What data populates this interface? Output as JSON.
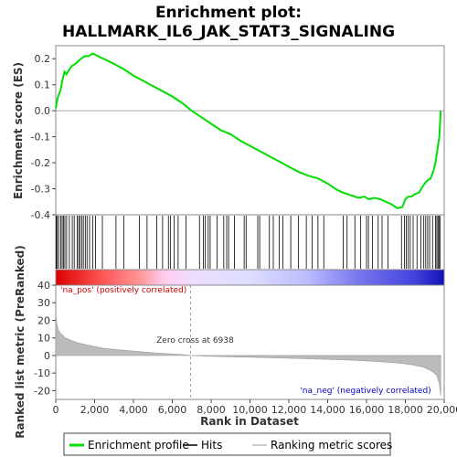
{
  "chart_data": {
    "type": "line",
    "title_line1": "Enrichment plot:",
    "title_line2": "HALLMARK_IL6_JAK_STAT3_SIGNALING",
    "es_panel": {
      "ylabel": "Enrichment score (ES)",
      "ylim": [
        -0.4,
        0.25
      ],
      "yticks": [
        -0.4,
        -0.3,
        -0.2,
        -0.1,
        0.0,
        0.1,
        0.2
      ],
      "ytick_labels": [
        "-0.4",
        "-0.3",
        "-0.2",
        "-0.1",
        "0.0",
        "0.1",
        "0.2"
      ],
      "series": [
        {
          "name": "Enrichment profile",
          "color": "#00dd00",
          "x": [
            0,
            100,
            250,
            350,
            450,
            550,
            800,
            1000,
            1150,
            1300,
            1500,
            1700,
            1900,
            2050,
            2300,
            2600,
            3000,
            3500,
            4000,
            4500,
            5000,
            5500,
            6000,
            6500,
            7000,
            7500,
            8000,
            8500,
            9000,
            9500,
            10000,
            10500,
            11000,
            11500,
            12000,
            12500,
            13000,
            13500,
            14000,
            14500,
            14800,
            15200,
            15600,
            15900,
            16100,
            16400,
            16700,
            17000,
            17300,
            17600,
            17850,
            18000,
            18150,
            18300,
            18500,
            18700,
            18900,
            19100,
            19300,
            19450,
            19550,
            19650,
            19750,
            19820
          ],
          "y": [
            0.01,
            0.05,
            0.08,
            0.12,
            0.15,
            0.14,
            0.17,
            0.18,
            0.19,
            0.2,
            0.21,
            0.21,
            0.22,
            0.215,
            0.205,
            0.195,
            0.18,
            0.16,
            0.135,
            0.115,
            0.095,
            0.075,
            0.055,
            0.03,
            0.0,
            -0.025,
            -0.05,
            -0.075,
            -0.09,
            -0.115,
            -0.135,
            -0.155,
            -0.175,
            -0.195,
            -0.215,
            -0.235,
            -0.25,
            -0.26,
            -0.28,
            -0.305,
            -0.315,
            -0.325,
            -0.335,
            -0.33,
            -0.34,
            -0.335,
            -0.34,
            -0.35,
            -0.36,
            -0.375,
            -0.37,
            -0.34,
            -0.33,
            -0.33,
            -0.32,
            -0.315,
            -0.29,
            -0.27,
            -0.26,
            -0.23,
            -0.2,
            -0.15,
            -0.1,
            0.0
          ]
        }
      ]
    },
    "hits_panel": {
      "hit_positions": [
        30,
        80,
        150,
        260,
        330,
        400,
        470,
        560,
        700,
        850,
        950,
        1100,
        1180,
        1250,
        1340,
        1420,
        1520,
        1610,
        1740,
        1900,
        2050,
        2400,
        3100,
        3500,
        4300,
        4700,
        5200,
        5500,
        5800,
        5900,
        6100,
        6300,
        6700,
        7400,
        7600,
        7700,
        7850,
        7950,
        8300,
        8650,
        8800,
        8900,
        9200,
        9700,
        9800,
        10400,
        10500,
        11000,
        11200,
        11500,
        11700,
        12100,
        12500,
        12900,
        13200,
        13500,
        13800,
        14800,
        15000,
        15400,
        15700,
        16000,
        16100,
        16300,
        16600,
        16800,
        17100,
        17800,
        17950,
        18050,
        18150,
        18250,
        18400,
        18600,
        18800,
        18950,
        19050,
        19150,
        19250,
        19400,
        19550,
        19620,
        19680,
        19730,
        19780
      ]
    },
    "rank_panel": {
      "ylabel": "Ranked list metric (PreRanked)",
      "xlabel": "Rank in Dataset",
      "ylim": [
        -25,
        40
      ],
      "yticks": [
        -20,
        -10,
        0,
        10,
        20,
        30,
        40
      ],
      "ytick_labels": [
        "-20",
        "-10",
        "0",
        "10",
        "20",
        "30",
        "40"
      ],
      "x": [
        0,
        50,
        150,
        300,
        500,
        800,
        1200,
        1800,
        2500,
        3500,
        4500,
        5500,
        6500,
        6938,
        8000,
        10000,
        12000,
        14000,
        15500,
        16500,
        17500,
        18300,
        18900,
        19300,
        19600,
        19750,
        19820
      ],
      "y": [
        24,
        18,
        14,
        12,
        10,
        8.5,
        7,
        5.5,
        4,
        3,
        2,
        1.2,
        0.5,
        0,
        -0.5,
        -1,
        -1.6,
        -2.2,
        -2.8,
        -3.4,
        -4.2,
        -5.2,
        -6.5,
        -8.5,
        -11,
        -16,
        -23
      ],
      "zero_cross_label": "Zero cross at 6938",
      "zero_cross_x": 6938,
      "pos_label": "'na_pos' (positively correlated)",
      "neg_label": "'na_neg' (negatively correlated)",
      "pos_color": "#cc0000",
      "neg_color": "#0000cc"
    },
    "xlim": [
      0,
      20000
    ],
    "xticks": [
      0,
      2000,
      4000,
      6000,
      8000,
      10000,
      12000,
      14000,
      16000,
      18000,
      20000
    ],
    "xtick_labels": [
      "0",
      "2,000",
      "4,000",
      "6,000",
      "8,000",
      "10,000",
      "12,000",
      "14,000",
      "16,000",
      "18,000",
      "20,000"
    ],
    "n_genes": 19820,
    "legend": [
      {
        "label": "Enrichment profile",
        "color": "#00dd00"
      },
      {
        "label": "Hits",
        "color": "#000000"
      },
      {
        "label": "Ranking metric scores",
        "color": "#bbbbbb"
      }
    ]
  }
}
